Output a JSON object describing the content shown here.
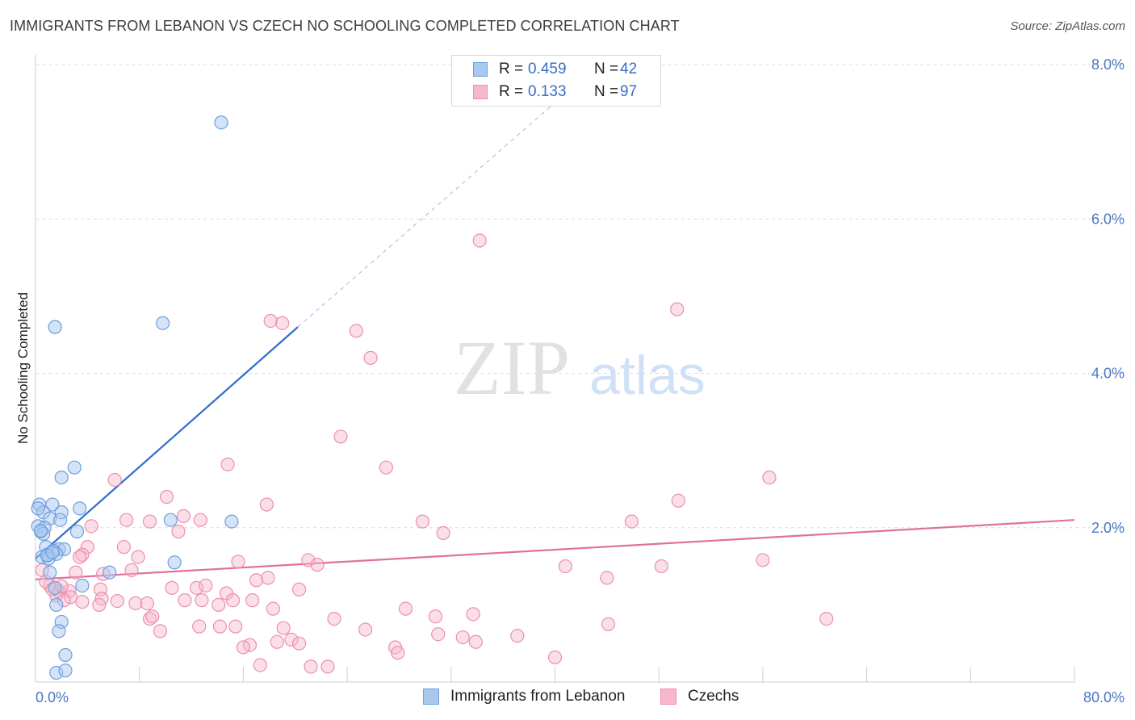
{
  "header": {
    "title": "IMMIGRANTS FROM LEBANON VS CZECH NO SCHOOLING COMPLETED CORRELATION CHART",
    "source": "Source: ZipAtlas.com"
  },
  "watermark": {
    "zip": "ZIP",
    "atlas": "atlas"
  },
  "legend": {
    "rows": [
      {
        "r_label": "R =",
        "r_value": "0.459",
        "n_label": "N =",
        "n_value": "42"
      },
      {
        "r_label": "R =",
        "r_value": "0.133",
        "n_label": "N =",
        "n_value": "97"
      }
    ]
  },
  "bottom_legend": {
    "series1": "Immigrants from Lebanon",
    "series2": "Czechs"
  },
  "colors": {
    "lebanon_fill": "#a9c8f0",
    "lebanon_stroke": "#6e9fdc",
    "lebanon_line": "#2f6fd0",
    "czech_fill": "#f7b8cb",
    "czech_stroke": "#ec8fab",
    "czech_line": "#e0709a",
    "tick_text": "#4a78c4",
    "grid": "#dcdcdc"
  },
  "chart_data": {
    "type": "scatter",
    "title": "IMMIGRANTS FROM LEBANON VS CZECH NO SCHOOLING COMPLETED CORRELATION CHART",
    "xlabel": "",
    "ylabel": "No Schooling Completed",
    "xlim": [
      0,
      80
    ],
    "ylim": [
      0,
      8
    ],
    "x_tick_labels": [
      "0.0%",
      "80.0%"
    ],
    "y_ticks": [
      2,
      4,
      6,
      8
    ],
    "y_tick_labels": [
      "2.0%",
      "4.0%",
      "6.0%",
      "8.0%"
    ],
    "grid": "horizontal dashed",
    "legend_placement": "top-center",
    "series": [
      {
        "name": "Immigrants from Lebanon",
        "R": 0.459,
        "N": 42,
        "trend": {
          "x": [
            0,
            20.2
          ],
          "y": [
            1.6,
            4.6
          ],
          "dashed_to": [
            42,
            7.8
          ]
        },
        "points": [
          [
            14.3,
            7.25
          ],
          [
            1.5,
            4.6
          ],
          [
            9.8,
            4.65
          ],
          [
            3.0,
            2.78
          ],
          [
            2.0,
            2.65
          ],
          [
            0.3,
            2.3
          ],
          [
            1.3,
            2.3
          ],
          [
            3.4,
            2.25
          ],
          [
            2.0,
            2.2
          ],
          [
            0.6,
            2.2
          ],
          [
            1.1,
            2.12
          ],
          [
            1.9,
            2.1
          ],
          [
            10.4,
            2.1
          ],
          [
            15.1,
            2.08
          ],
          [
            0.2,
            2.02
          ],
          [
            0.7,
            2.0
          ],
          [
            0.4,
            1.95
          ],
          [
            3.2,
            1.95
          ],
          [
            0.6,
            1.92
          ],
          [
            0.8,
            1.75
          ],
          [
            1.8,
            1.72
          ],
          [
            1.4,
            1.7
          ],
          [
            2.2,
            1.72
          ],
          [
            0.9,
            1.65
          ],
          [
            1.6,
            1.66
          ],
          [
            0.5,
            1.62
          ],
          [
            1.0,
            1.6
          ],
          [
            10.7,
            1.55
          ],
          [
            5.7,
            1.42
          ],
          [
            1.1,
            1.42
          ],
          [
            3.6,
            1.25
          ],
          [
            1.5,
            1.22
          ],
          [
            1.6,
            1.0
          ],
          [
            2.0,
            0.78
          ],
          [
            1.8,
            0.66
          ],
          [
            2.3,
            0.35
          ],
          [
            1.6,
            0.12
          ],
          [
            2.3,
            0.15
          ],
          [
            0.4,
            1.96
          ],
          [
            0.9,
            1.64
          ],
          [
            1.3,
            1.68
          ],
          [
            0.2,
            2.25
          ]
        ]
      },
      {
        "name": "Czechs",
        "R": 0.133,
        "N": 97,
        "trend": {
          "x": [
            0,
            80
          ],
          "y": [
            1.33,
            2.1
          ]
        },
        "points": [
          [
            34.2,
            5.72
          ],
          [
            18.1,
            4.68
          ],
          [
            19.0,
            4.65
          ],
          [
            49.4,
            4.83
          ],
          [
            24.7,
            4.55
          ],
          [
            25.8,
            4.2
          ],
          [
            23.5,
            3.18
          ],
          [
            27.0,
            2.78
          ],
          [
            14.8,
            2.82
          ],
          [
            56.5,
            2.65
          ],
          [
            6.1,
            2.62
          ],
          [
            10.1,
            2.4
          ],
          [
            49.5,
            2.35
          ],
          [
            17.8,
            2.3
          ],
          [
            11.4,
            2.15
          ],
          [
            7.0,
            2.1
          ],
          [
            12.7,
            2.1
          ],
          [
            8.8,
            2.08
          ],
          [
            29.8,
            2.08
          ],
          [
            45.9,
            2.08
          ],
          [
            4.3,
            2.02
          ],
          [
            11.0,
            1.95
          ],
          [
            31.4,
            1.93
          ],
          [
            6.8,
            1.75
          ],
          [
            4.0,
            1.75
          ],
          [
            3.6,
            1.65
          ],
          [
            7.9,
            1.62
          ],
          [
            15.6,
            1.56
          ],
          [
            21.0,
            1.58
          ],
          [
            21.7,
            1.52
          ],
          [
            40.8,
            1.5
          ],
          [
            48.2,
            1.5
          ],
          [
            56.0,
            1.58
          ],
          [
            7.4,
            1.45
          ],
          [
            0.5,
            1.45
          ],
          [
            3.1,
            1.42
          ],
          [
            5.2,
            1.4
          ],
          [
            17.0,
            1.32
          ],
          [
            17.9,
            1.35
          ],
          [
            44.0,
            1.35
          ],
          [
            1.1,
            1.25
          ],
          [
            10.5,
            1.22
          ],
          [
            12.4,
            1.22
          ],
          [
            13.1,
            1.25
          ],
          [
            14.7,
            1.15
          ],
          [
            20.3,
            1.2
          ],
          [
            5.0,
            1.2
          ],
          [
            1.8,
            1.18
          ],
          [
            2.6,
            1.18
          ],
          [
            0.8,
            1.3
          ],
          [
            1.6,
            1.12
          ],
          [
            2.7,
            1.1
          ],
          [
            2.2,
            1.06
          ],
          [
            5.1,
            1.08
          ],
          [
            3.6,
            1.04
          ],
          [
            6.3,
            1.05
          ],
          [
            4.9,
            1.0
          ],
          [
            7.7,
            1.02
          ],
          [
            8.6,
            1.02
          ],
          [
            11.5,
            1.06
          ],
          [
            12.8,
            1.06
          ],
          [
            14.1,
            1.0
          ],
          [
            15.2,
            1.06
          ],
          [
            16.7,
            1.06
          ],
          [
            18.3,
            0.95
          ],
          [
            28.5,
            0.95
          ],
          [
            30.8,
            0.85
          ],
          [
            33.7,
            0.88
          ],
          [
            8.8,
            0.82
          ],
          [
            9.0,
            0.85
          ],
          [
            23.0,
            0.82
          ],
          [
            44.1,
            0.75
          ],
          [
            60.9,
            0.82
          ],
          [
            12.6,
            0.72
          ],
          [
            14.2,
            0.72
          ],
          [
            15.4,
            0.72
          ],
          [
            19.1,
            0.7
          ],
          [
            25.4,
            0.68
          ],
          [
            9.6,
            0.66
          ],
          [
            31.0,
            0.62
          ],
          [
            32.9,
            0.58
          ],
          [
            37.1,
            0.6
          ],
          [
            19.7,
            0.55
          ],
          [
            20.3,
            0.5
          ],
          [
            18.6,
            0.52
          ],
          [
            33.9,
            0.52
          ],
          [
            16.5,
            0.48
          ],
          [
            16.0,
            0.45
          ],
          [
            27.7,
            0.45
          ],
          [
            27.9,
            0.38
          ],
          [
            40.0,
            0.32
          ],
          [
            17.3,
            0.22
          ],
          [
            21.2,
            0.2
          ],
          [
            22.5,
            0.2
          ],
          [
            3.4,
            1.62
          ],
          [
            1.3,
            1.2
          ],
          [
            2.0,
            1.24
          ]
        ]
      }
    ]
  }
}
